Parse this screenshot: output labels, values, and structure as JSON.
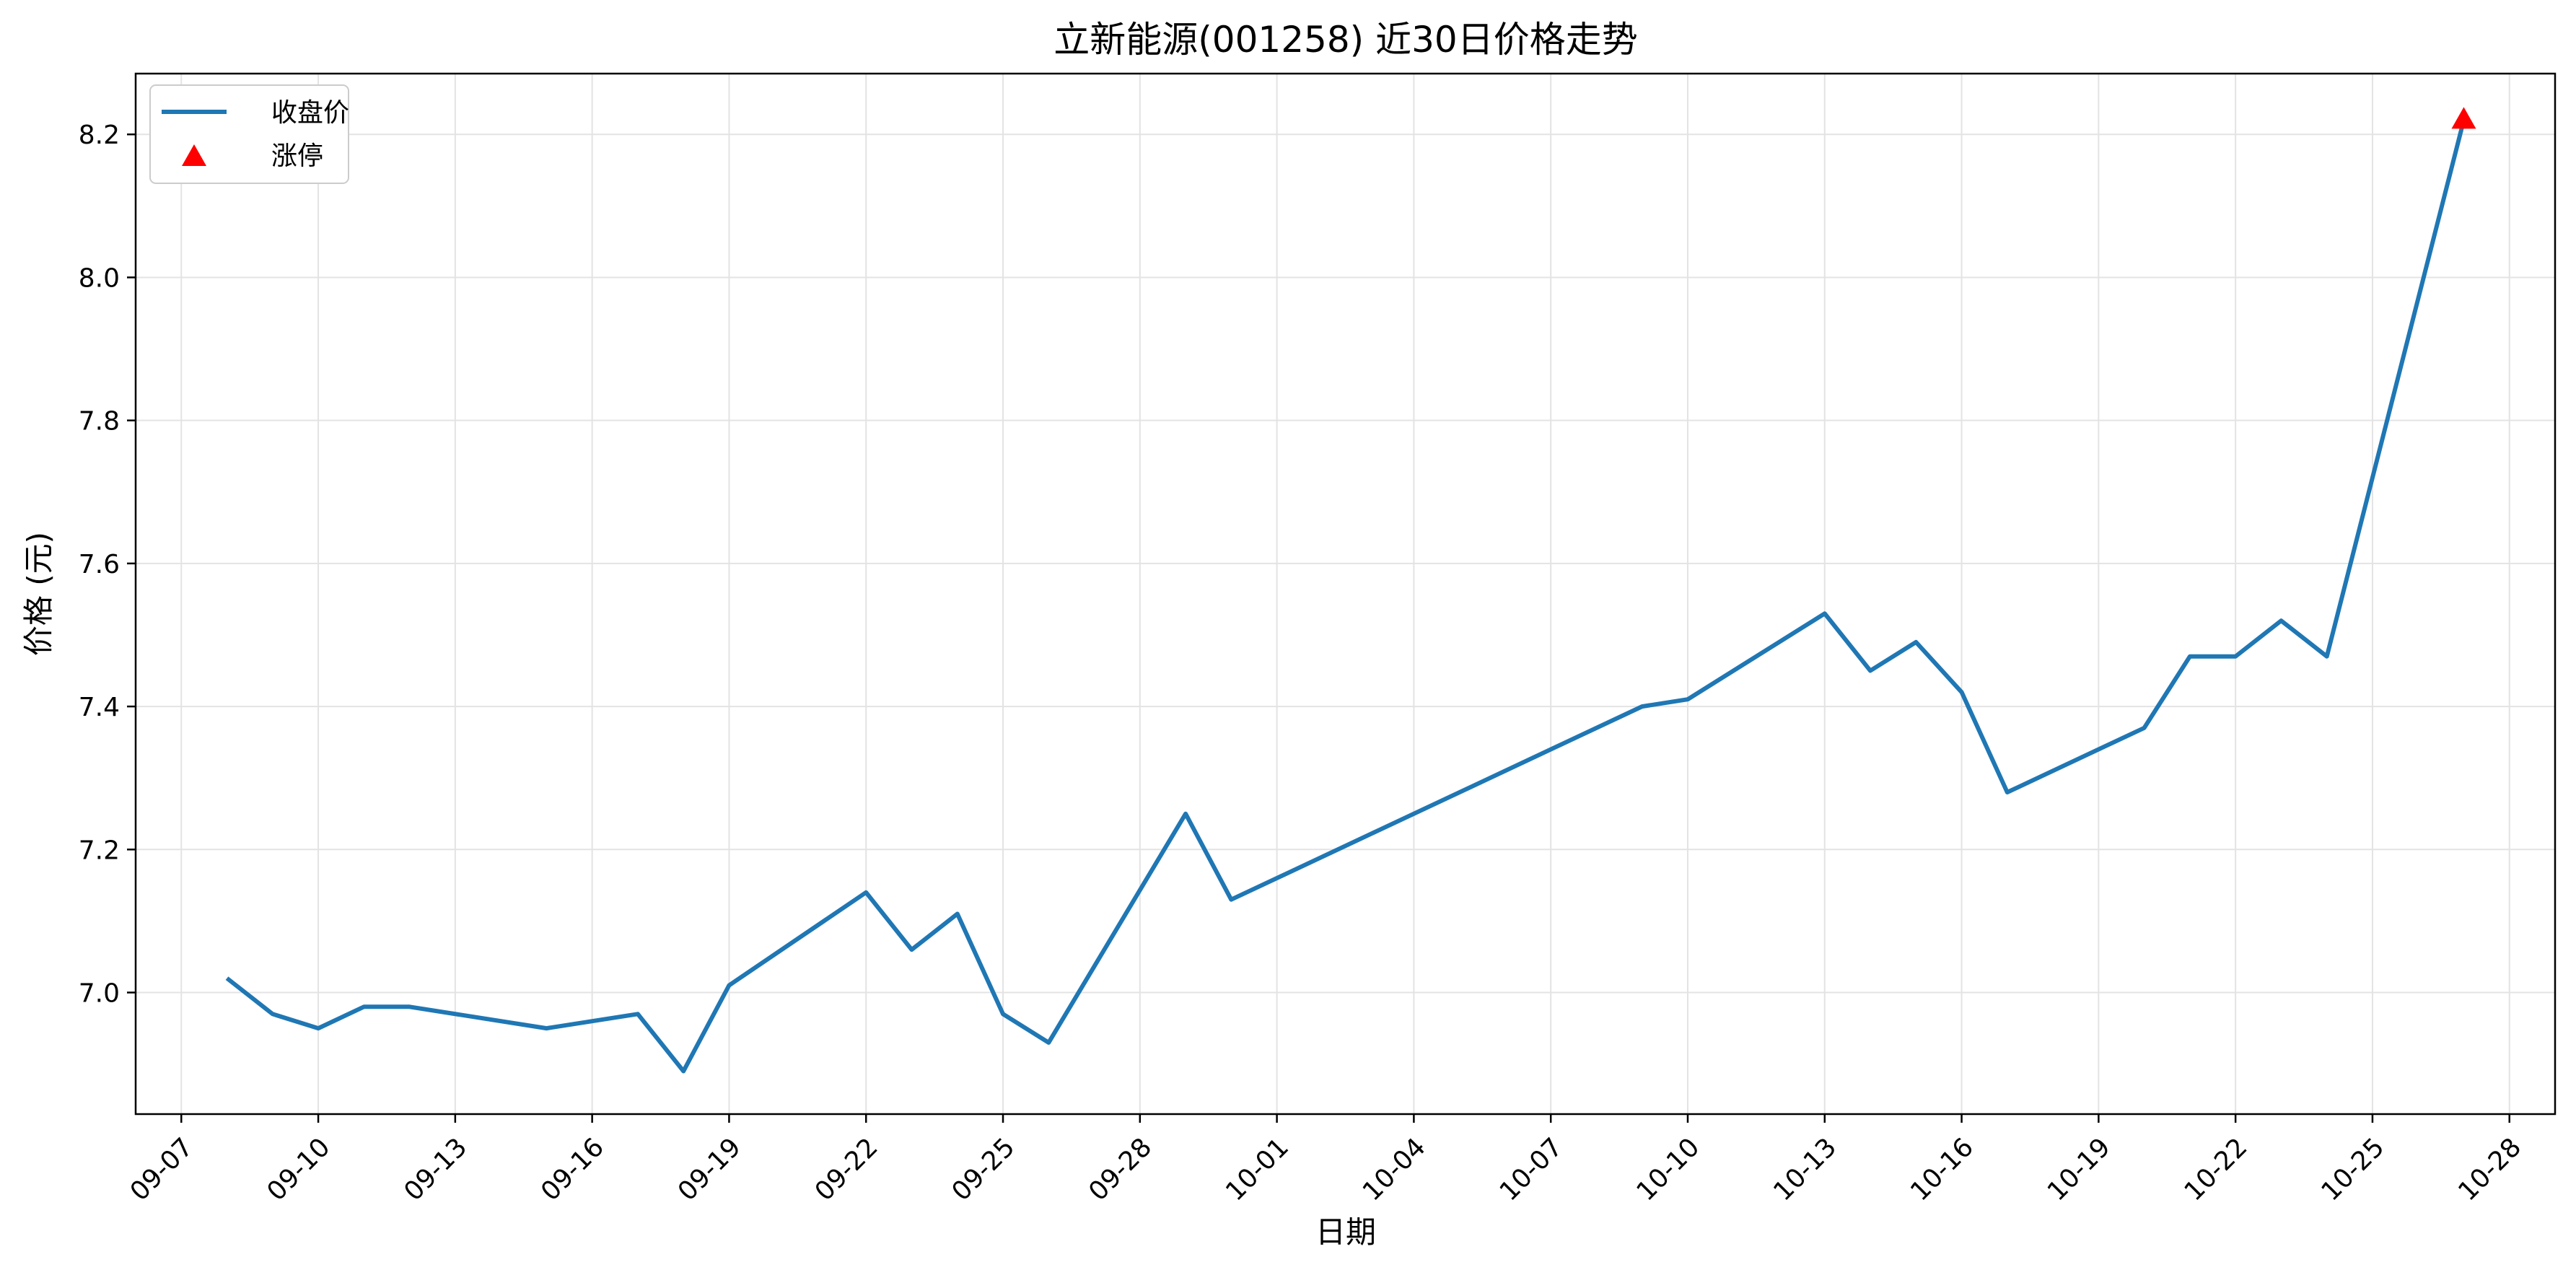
{
  "chart_data": {
    "type": "line",
    "title": "立新能源(001258) 近30日价格走势",
    "xlabel": "日期",
    "ylabel": "价格 (元)",
    "x_ticks": [
      "09-07",
      "09-10",
      "09-13",
      "09-16",
      "09-19",
      "09-22",
      "09-25",
      "09-28",
      "10-01",
      "10-04",
      "10-07",
      "10-10",
      "10-13",
      "10-16",
      "10-19",
      "10-22",
      "10-25",
      "10-28"
    ],
    "y_ticks": [
      7.0,
      7.2,
      7.4,
      7.6,
      7.8,
      8.0,
      8.2
    ],
    "y_tick_labels": [
      "7.0",
      "7.2",
      "7.4",
      "7.6",
      "7.8",
      "8.0",
      "8.2"
    ],
    "xlim": [
      "09-06",
      "10-29"
    ],
    "ylim": [
      6.83,
      8.285
    ],
    "grid": true,
    "legend_position": "top-left",
    "series": [
      {
        "name": "收盘价",
        "color": "#1f77b4",
        "x": [
          "09-08",
          "09-09",
          "09-10",
          "09-11",
          "09-12",
          "09-15",
          "09-17",
          "09-18",
          "09-19",
          "09-22",
          "09-23",
          "09-24",
          "09-25",
          "09-26",
          "09-29",
          "09-30",
          "10-09",
          "10-10",
          "10-13",
          "10-14",
          "10-15",
          "10-16",
          "10-17",
          "10-20",
          "10-21",
          "10-22",
          "10-23",
          "10-24",
          "10-27"
        ],
        "y": [
          7.02,
          6.97,
          6.95,
          6.98,
          6.98,
          6.95,
          6.97,
          6.89,
          7.01,
          7.14,
          7.06,
          7.11,
          6.97,
          6.93,
          7.25,
          7.13,
          7.4,
          7.41,
          7.53,
          7.45,
          7.49,
          7.42,
          7.28,
          7.37,
          7.47,
          7.47,
          7.52,
          7.47,
          8.22
        ]
      }
    ],
    "markers": [
      {
        "name": "涨停",
        "color": "#ff0000",
        "shape": "triangle-up",
        "x": [
          "10-27"
        ],
        "y": [
          8.22
        ]
      }
    ]
  }
}
